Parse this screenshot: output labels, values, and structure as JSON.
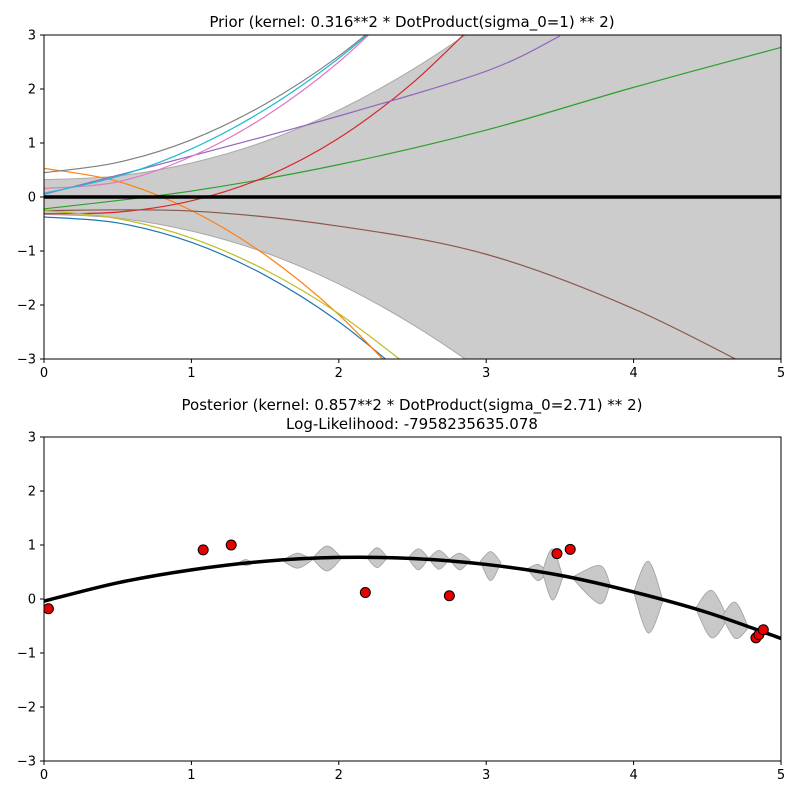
{
  "chart_data": [
    {
      "type": "line",
      "title": "Prior (kernel:  0.316**2 * DotProduct(sigma_0=1) ** 2)",
      "subtitle": "",
      "xlabel": "",
      "ylabel": "",
      "xlim": [
        0,
        5
      ],
      "ylim": [
        -3,
        3
      ],
      "xticks": [
        0,
        1,
        2,
        3,
        4,
        5
      ],
      "yticks": [
        -3,
        -2,
        -1,
        0,
        1,
        2,
        3
      ],
      "grid": false,
      "mean": {
        "x": [
          0,
          5
        ],
        "y": [
          0,
          0
        ],
        "color": "#000000"
      },
      "band": {
        "x": [
          0,
          0.5,
          1,
          1.5,
          2,
          2.5,
          3,
          3.5,
          4,
          4.5,
          5
        ],
        "upper": [
          0.32,
          0.39,
          0.63,
          1.03,
          1.61,
          2.36,
          3.28,
          4.37,
          5.63,
          7.06,
          8.66
        ],
        "lower": [
          -0.32,
          -0.39,
          -0.63,
          -1.03,
          -1.61,
          -2.36,
          -3.28,
          -4.37,
          -5.63,
          -7.06,
          -8.66
        ],
        "color": "#cccccc"
      },
      "samples": [
        {
          "color": "#1f77b4",
          "x": [
            0,
            0.5,
            1,
            1.5,
            2,
            2.5
          ],
          "y": [
            -0.37,
            -0.48,
            -0.84,
            -1.45,
            -2.31,
            -3.42
          ]
        },
        {
          "color": "#ff7f0e",
          "x": [
            0,
            0.5,
            1,
            1.5,
            2,
            2.5
          ],
          "y": [
            0.53,
            0.29,
            -0.25,
            -1.07,
            -2.18,
            -3.59
          ]
        },
        {
          "color": "#2ca02c",
          "x": [
            0,
            1,
            2,
            3,
            4,
            5
          ],
          "y": [
            -0.22,
            0.11,
            0.6,
            1.24,
            2.03,
            2.77
          ]
        },
        {
          "color": "#d62728",
          "x": [
            0,
            0.5,
            1,
            1.5,
            2,
            2.5,
            3
          ],
          "y": [
            -0.31,
            -0.28,
            -0.07,
            0.37,
            1.09,
            2.11,
            3.42
          ]
        },
        {
          "color": "#9467bd",
          "x": [
            0,
            1,
            2,
            3,
            3.5
          ],
          "y": [
            0.05,
            0.76,
            1.5,
            2.33,
            2.98
          ]
        },
        {
          "color": "#8c564b",
          "x": [
            0,
            1,
            2,
            3,
            4,
            5
          ],
          "y": [
            -0.25,
            -0.26,
            -0.54,
            -1.06,
            -2.07,
            -3.44
          ]
        },
        {
          "color": "#e377c2",
          "x": [
            0,
            0.5,
            1,
            1.5,
            2,
            2.5
          ],
          "y": [
            0.16,
            0.28,
            0.75,
            1.49,
            2.5,
            3.79
          ]
        },
        {
          "color": "#7f7f7f",
          "x": [
            0,
            0.5,
            1,
            1.5,
            2,
            2.5
          ],
          "y": [
            0.45,
            0.64,
            1.06,
            1.72,
            2.61,
            3.73
          ]
        },
        {
          "color": "#bcbd22",
          "x": [
            0,
            0.5,
            1,
            1.5,
            2,
            2.5
          ],
          "y": [
            -0.25,
            -0.4,
            -0.76,
            -1.35,
            -2.16,
            -3.19
          ]
        },
        {
          "color": "#17becf",
          "x": [
            0,
            0.5,
            1,
            1.5,
            2,
            2.5
          ],
          "y": [
            0.07,
            0.38,
            0.89,
            1.62,
            2.57,
            3.72
          ]
        }
      ]
    },
    {
      "type": "line",
      "title": "Posterior (kernel: 0.857**2 * DotProduct(sigma_0=2.71) ** 2)",
      "subtitle": "Log-Likelihood: -7958235635.078",
      "xlabel": "",
      "ylabel": "",
      "xlim": [
        0,
        5
      ],
      "ylim": [
        -3,
        3
      ],
      "xticks": [
        0,
        1,
        2,
        3,
        4,
        5
      ],
      "yticks": [
        -3,
        -2,
        -1,
        0,
        1,
        2,
        3
      ],
      "grid": false,
      "mean": {
        "x": [
          0,
          0.5,
          1,
          1.5,
          2,
          2.5,
          3,
          3.5,
          4,
          4.5,
          5
        ],
        "y": [
          -0.04,
          0.3,
          0.54,
          0.7,
          0.77,
          0.75,
          0.64,
          0.44,
          0.13,
          -0.25,
          -0.73
        ],
        "color": "#000000"
      },
      "band_segments": [
        {
          "x": [
            1.32,
            1.37,
            1.42
          ],
          "upper": [
            0.67,
            0.73,
            0.66
          ],
          "lower": [
            0.67,
            0.62,
            0.66
          ]
        },
        {
          "x": [
            1.62,
            1.72,
            1.82
          ],
          "upper": [
            0.71,
            0.85,
            0.72
          ],
          "lower": [
            0.71,
            0.57,
            0.72
          ]
        },
        {
          "x": [
            1.82,
            1.92,
            2.02
          ],
          "upper": [
            0.75,
            0.98,
            0.76
          ],
          "lower": [
            0.75,
            0.52,
            0.76
          ]
        },
        {
          "x": [
            2.19,
            2.26,
            2.33
          ],
          "upper": [
            0.77,
            0.95,
            0.77
          ],
          "lower": [
            0.77,
            0.58,
            0.77
          ]
        },
        {
          "x": [
            2.47,
            2.54,
            2.61
          ],
          "upper": [
            0.76,
            0.93,
            0.76
          ],
          "lower": [
            0.76,
            0.54,
            0.76
          ]
        },
        {
          "x": [
            2.61,
            2.68,
            2.75
          ],
          "upper": [
            0.75,
            0.9,
            0.74
          ],
          "lower": [
            0.75,
            0.55,
            0.74
          ]
        },
        {
          "x": [
            2.75,
            2.82,
            2.89
          ],
          "upper": [
            0.74,
            0.85,
            0.72
          ],
          "lower": [
            0.74,
            0.54,
            0.72
          ]
        },
        {
          "x": [
            2.96,
            3.03,
            3.1
          ],
          "upper": [
            0.7,
            0.88,
            0.68
          ],
          "lower": [
            0.7,
            0.34,
            0.68
          ]
        },
        {
          "x": [
            3.28,
            3.35,
            3.42
          ],
          "upper": [
            0.56,
            0.64,
            0.5
          ],
          "lower": [
            0.56,
            0.34,
            0.5
          ]
        },
        {
          "x": [
            3.38,
            3.45,
            3.52
          ],
          "upper": [
            0.51,
            0.93,
            0.4
          ],
          "lower": [
            0.51,
            -0.02,
            0.4
          ]
        },
        {
          "x": [
            3.58,
            3.77,
            3.84
          ],
          "upper": [
            0.4,
            0.62,
            0.28
          ],
          "lower": [
            0.4,
            -0.09,
            0.28
          ]
        },
        {
          "x": [
            4.0,
            4.1,
            4.2
          ],
          "upper": [
            0.13,
            0.7,
            -0.03
          ],
          "lower": [
            0.13,
            -0.63,
            -0.03
          ]
        },
        {
          "x": [
            4.42,
            4.53,
            4.64
          ],
          "upper": [
            -0.17,
            0.16,
            -0.36
          ],
          "lower": [
            -0.17,
            -0.72,
            -0.36
          ]
        },
        {
          "x": [
            4.6,
            4.69,
            4.78
          ],
          "upper": [
            -0.32,
            -0.06,
            -0.53
          ],
          "lower": [
            -0.32,
            -0.73,
            -0.53
          ]
        }
      ],
      "band_color": "#c8c8c8",
      "points": {
        "x": [
          0.03,
          1.08,
          1.27,
          2.18,
          2.75,
          3.48,
          3.57,
          4.83,
          4.85,
          4.88
        ],
        "y": [
          -0.18,
          0.91,
          1.0,
          0.12,
          0.06,
          0.84,
          0.92,
          -0.72,
          -0.66,
          -0.57
        ],
        "color": "#e60000"
      }
    }
  ]
}
